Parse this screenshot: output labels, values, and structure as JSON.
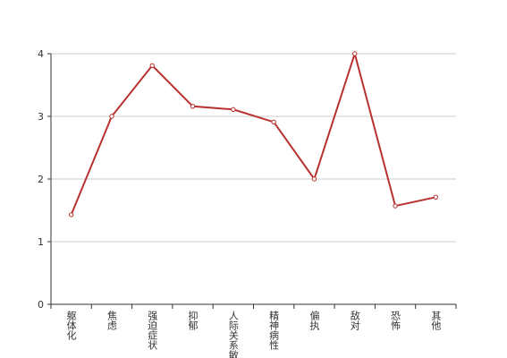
{
  "chart_data": {
    "type": "line",
    "categories": [
      "躯体化",
      "焦虑",
      "强迫症状",
      "抑郁",
      "人际关系敏感",
      "精神病性",
      "偏执",
      "敌对",
      "恐怖",
      "其他"
    ],
    "values": [
      1.43,
      3.0,
      3.81,
      3.16,
      3.11,
      2.91,
      2.0,
      4.0,
      1.57,
      1.71
    ],
    "color": "#b8312f",
    "ylim": [
      0,
      4
    ],
    "yticks": [
      0,
      1,
      2,
      3,
      4
    ],
    "grid": true
  }
}
